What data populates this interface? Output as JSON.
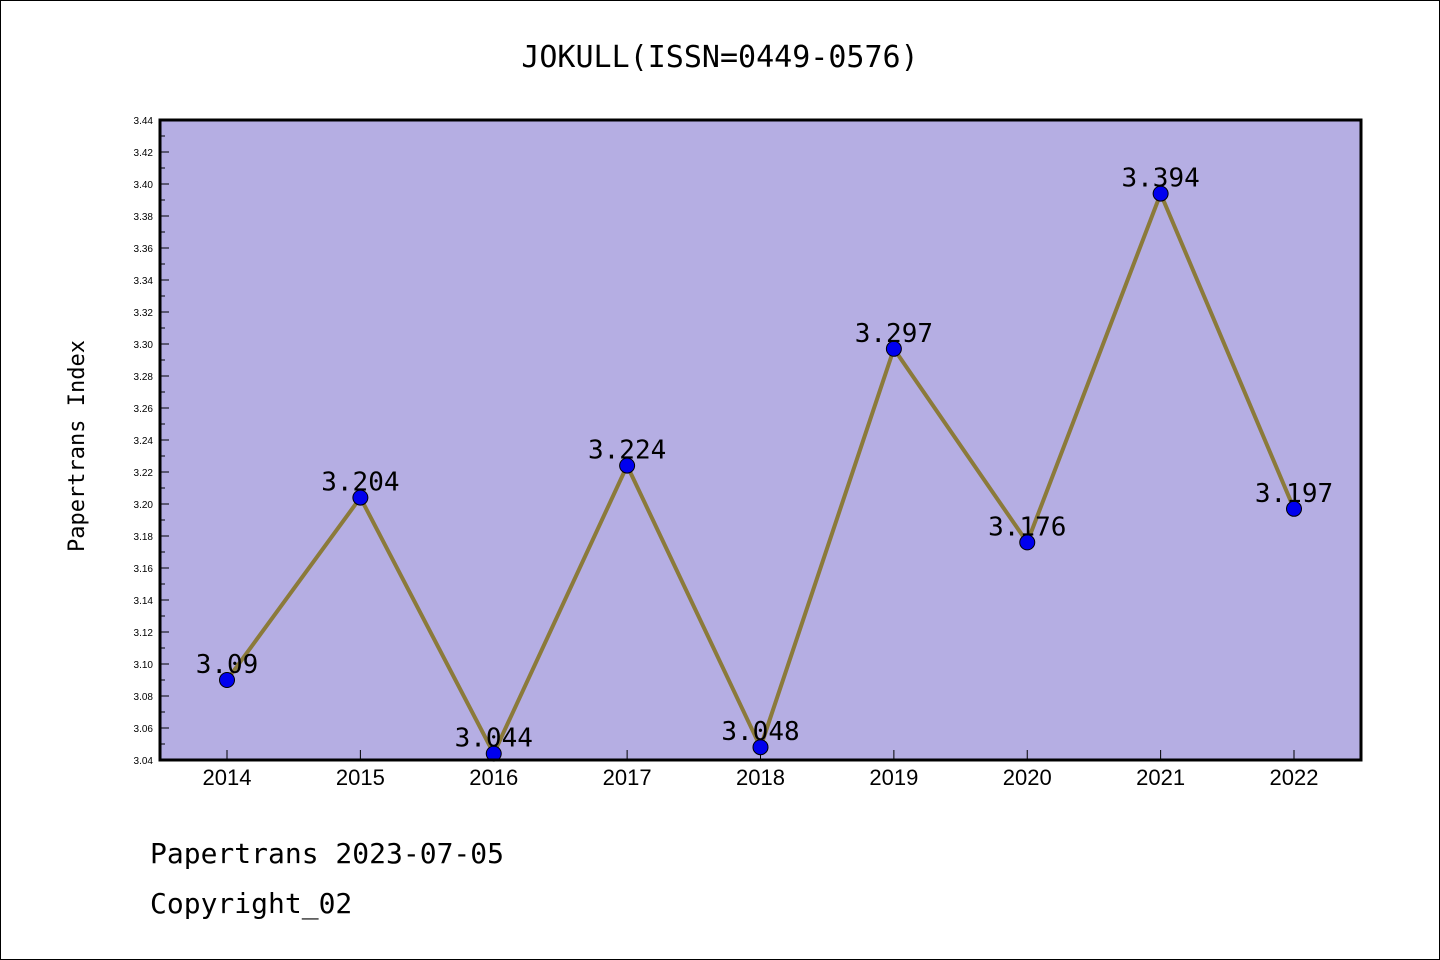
{
  "chart_data": {
    "type": "line",
    "title": "JOKULL(ISSN=0449-0576)",
    "ylabel": "Papertrans Index",
    "xlabel": "",
    "categories": [
      "2014",
      "2015",
      "2016",
      "2017",
      "2018",
      "2019",
      "2020",
      "2021",
      "2022"
    ],
    "series": [
      {
        "values": [
          3.09,
          3.204,
          3.044,
          3.224,
          3.048,
          3.297,
          3.176,
          3.394,
          3.197
        ],
        "labels": [
          "3.09",
          "3.204",
          "3.044",
          "3.224",
          "3.048",
          "3.297",
          "3.176",
          "3.394",
          "3.197"
        ]
      }
    ],
    "ylim": [
      3.04,
      3.44
    ],
    "ytick_step": 0.02,
    "grid": false,
    "colors": {
      "plot_background": "#b5aee3",
      "line": "#8b7a3a",
      "marker": "#0000ee"
    }
  },
  "footer": {
    "line1": "Papertrans 2023-07-05",
    "line2": "Copyright_02"
  }
}
